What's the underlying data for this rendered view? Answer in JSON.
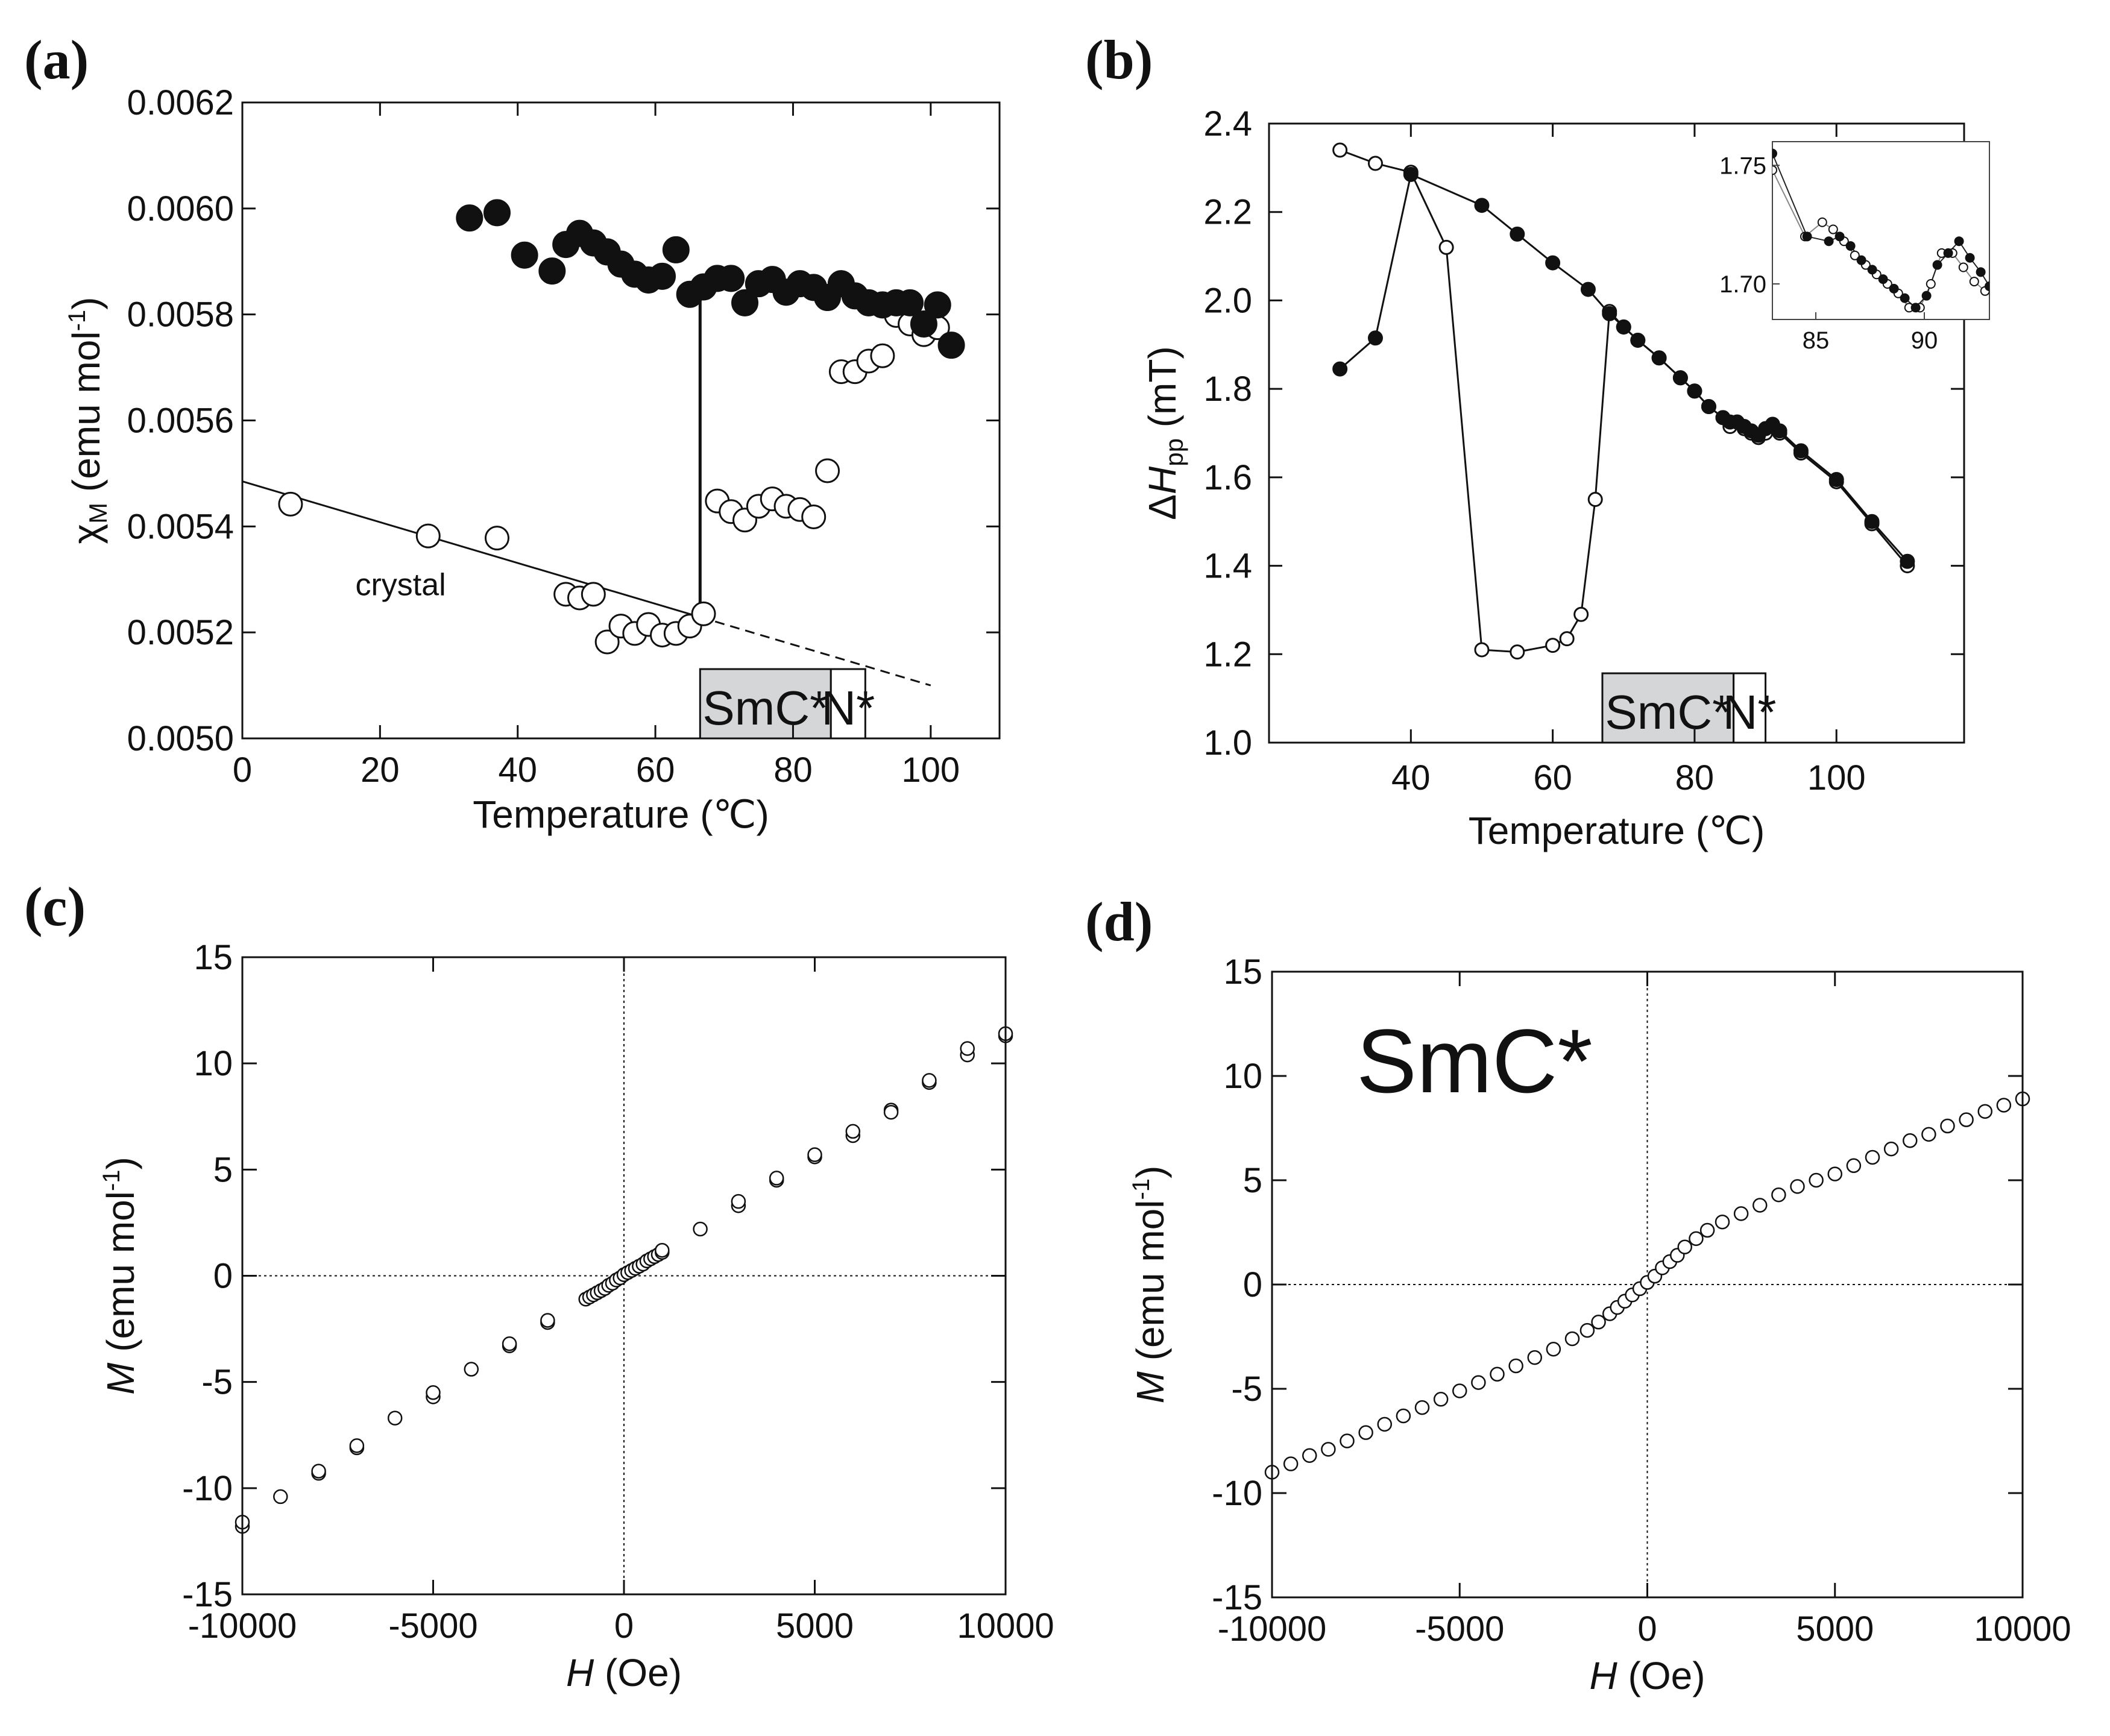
{
  "chart_data": [
    {
      "id": "a",
      "type": "scatter",
      "panel_label": "(a)",
      "xlabel": "Temperature (℃)",
      "ylabel_main": "χ",
      "ylabel_sub": "M",
      "ylabel_rest": " (emu mol",
      "ylabel_sup": "-1",
      "ylabel_close": ")",
      "xlim": [
        0,
        110
      ],
      "ylim": [
        0.005,
        0.0062
      ],
      "xticks": [
        0,
        20,
        40,
        60,
        80,
        100
      ],
      "yticks": [
        0.005,
        0.0052,
        0.0054,
        0.0056,
        0.0058,
        0.006,
        0.0062
      ],
      "ytick_labels": [
        "0.0050",
        "0.0052",
        "0.0054",
        "0.0056",
        "0.0058",
        "0.0060",
        "0.0062"
      ],
      "annotation": "crystal",
      "phase_bar": {
        "labels": [
          "SmC*",
          "N*"
        ],
        "ranges": [
          [
            66.5,
            85.5
          ],
          [
            85.5,
            90.5
          ]
        ],
        "shaded": [
          true,
          false
        ]
      },
      "transition_line": {
        "x": 66.5,
        "y_from": 0.00521,
        "y_to": 0.00583
      },
      "fit_line": {
        "x_from": 0,
        "x_to": 100,
        "y_from": 0.005485,
        "y_to": 0.0051,
        "solid_until_x": 66.5
      },
      "series": [
        {
          "style": "filled",
          "x": [
            33,
            37,
            41,
            45,
            47,
            49,
            51,
            53,
            55,
            57,
            59,
            61,
            63,
            65,
            67,
            69,
            71,
            73,
            75,
            77,
            79,
            81,
            83,
            85,
            87,
            89,
            91,
            93,
            95,
            97,
            99,
            101,
            103
          ],
          "y": [
            0.005982,
            0.005992,
            0.005912,
            0.005882,
            0.005932,
            0.005953,
            0.005935,
            0.005918,
            0.005895,
            0.005876,
            0.005865,
            0.005872,
            0.005922,
            0.005838,
            0.005852,
            0.005868,
            0.005868,
            0.005822,
            0.005858,
            0.005866,
            0.005842,
            0.005858,
            0.005851,
            0.005832,
            0.005858,
            0.005835,
            0.005822,
            0.005818,
            0.005822,
            0.005822,
            0.005782,
            0.005818,
            0.005742
          ]
        },
        {
          "style": "open",
          "x": [
            7,
            27,
            37,
            47,
            49,
            51,
            53,
            55,
            57,
            59,
            61,
            63,
            65,
            67,
            69,
            71,
            73,
            75,
            77,
            79,
            81,
            83,
            85,
            87,
            89,
            91,
            93,
            95,
            97,
            99,
            101
          ],
          "y": [
            0.005442,
            0.005382,
            0.005378,
            0.005272,
            0.005265,
            0.005272,
            0.005182,
            0.005212,
            0.005198,
            0.005215,
            0.005195,
            0.005198,
            0.005212,
            0.005235,
            0.005448,
            0.005428,
            0.005412,
            0.005438,
            0.005452,
            0.005438,
            0.005432,
            0.005418,
            0.005505,
            0.005692,
            0.005692,
            0.005712,
            0.005722,
            0.005798,
            0.005782,
            0.005762,
            0.005775
          ]
        }
      ]
    },
    {
      "id": "b",
      "type": "line",
      "panel_label": "(b)",
      "xlabel": "Temperature (℃)",
      "ylabel_delta": "Δ",
      "ylabel_main": "H",
      "ylabel_sub": "pp",
      "ylabel_rest": " (mT)",
      "xlim": [
        20,
        118
      ],
      "ylim": [
        1.0,
        2.4
      ],
      "xticks": [
        40,
        60,
        80,
        100
      ],
      "yticks": [
        1.0,
        1.2,
        1.4,
        1.6,
        1.8,
        2.0,
        2.2,
        2.4
      ],
      "ytick_labels": [
        "1.0",
        "1.2",
        "1.4",
        "1.6",
        "1.8",
        "2.0",
        "2.2",
        "2.4"
      ],
      "phase_bar": {
        "labels": [
          "SmC*",
          "N*"
        ],
        "ranges": [
          [
            67,
            85.5
          ],
          [
            85.5,
            90
          ]
        ],
        "shaded": [
          true,
          false
        ]
      },
      "series": [
        {
          "style": "open",
          "x": [
            30,
            35,
            40,
            45,
            50,
            55,
            60,
            62,
            64,
            66,
            68,
            70,
            72,
            75,
            78,
            80,
            82,
            84,
            85,
            86,
            87,
            88,
            89,
            90,
            91,
            92,
            95,
            100,
            105,
            110
          ],
          "y": [
            2.34,
            2.31,
            2.29,
            2.12,
            1.21,
            1.205,
            1.22,
            1.235,
            1.29,
            1.55,
            1.975,
            1.94,
            1.91,
            1.87,
            1.825,
            1.795,
            1.76,
            1.735,
            1.715,
            1.725,
            1.71,
            1.7,
            1.69,
            1.7,
            1.715,
            1.7,
            1.655,
            1.59,
            1.495,
            1.4
          ]
        },
        {
          "style": "filled",
          "x": [
            30,
            35,
            40,
            50,
            55,
            60,
            65,
            68,
            70,
            72,
            75,
            78,
            80,
            82,
            84,
            85,
            86,
            87,
            88,
            89,
            90,
            91,
            92,
            95,
            100,
            105,
            110
          ],
          "y": [
            1.845,
            1.915,
            2.285,
            2.215,
            2.15,
            2.085,
            2.025,
            1.97,
            1.94,
            1.91,
            1.87,
            1.825,
            1.795,
            1.76,
            1.735,
            1.725,
            1.725,
            1.715,
            1.705,
            1.695,
            1.71,
            1.72,
            1.705,
            1.66,
            1.595,
            1.5,
            1.41
          ]
        }
      ],
      "inset": {
        "xlim": [
          83,
          93
        ],
        "ylim": [
          1.685,
          1.76
        ],
        "xticks": [
          85,
          90
        ],
        "yticks": [
          1.7,
          1.75
        ],
        "ytick_labels": [
          "1.70",
          "1.75"
        ],
        "series": [
          {
            "style": "open",
            "x": [
              83,
              84.5,
              85.3,
              85.8,
              86.3,
              86.8,
              87.3,
              87.8,
              88.3,
              88.8,
              89.3,
              89.8,
              90.3,
              90.8,
              91.3,
              91.8,
              92.3,
              92.8
            ],
            "y": [
              1.748,
              1.72,
              1.726,
              1.723,
              1.718,
              1.712,
              1.708,
              1.704,
              1.7,
              1.696,
              1.69,
              1.69,
              1.7,
              1.713,
              1.713,
              1.707,
              1.701,
              1.697
            ]
          },
          {
            "style": "filled",
            "x": [
              83,
              84.6,
              85.6,
              86.1,
              86.6,
              87.1,
              87.6,
              88.1,
              88.6,
              89.1,
              89.6,
              90.1,
              90.6,
              91.1,
              91.6,
              92.1,
              92.6,
              93
            ],
            "y": [
              1.755,
              1.72,
              1.718,
              1.72,
              1.716,
              1.71,
              1.706,
              1.702,
              1.698,
              1.694,
              1.69,
              1.695,
              1.708,
              1.713,
              1.718,
              1.711,
              1.705,
              1.699
            ]
          }
        ]
      }
    },
    {
      "id": "c",
      "type": "scatter",
      "panel_label": "(c)",
      "xlabel_italic": "H",
      "xlabel_rest": " (Oe)",
      "ylabel_italic": "M",
      "ylabel_rest": " (emu mol",
      "ylabel_sup": "-1",
      "ylabel_close": ")",
      "xlim": [
        -10000,
        10000
      ],
      "ylim": [
        -15,
        15
      ],
      "xticks": [
        -10000,
        -5000,
        0,
        5000,
        10000
      ],
      "yticks": [
        -15,
        -10,
        -5,
        0,
        5,
        10,
        15
      ],
      "series": [
        {
          "style": "open",
          "x": [
            -10000,
            -10000,
            -9000,
            -8000,
            -8000,
            -7000,
            -7000,
            -6000,
            -5000,
            -5000,
            -4000,
            -3000,
            -3000,
            -2000,
            -2000,
            -1000,
            -900,
            -800,
            -700,
            -600,
            -500,
            -400,
            -300,
            -200,
            -100,
            0,
            100,
            200,
            300,
            400,
            500,
            600,
            700,
            800,
            900,
            1000,
            1000,
            2000,
            3000,
            3000,
            4000,
            4000,
            5000,
            5000,
            6000,
            6000,
            7000,
            7000,
            8000,
            8000,
            9000,
            9000,
            10000,
            10000
          ],
          "y": [
            -11.8,
            -11.6,
            -10.4,
            -9.3,
            -9.2,
            -8.1,
            -8.0,
            -6.7,
            -5.7,
            -5.5,
            -4.4,
            -3.3,
            -3.2,
            -2.2,
            -2.1,
            -1.1,
            -1.0,
            -0.9,
            -0.8,
            -0.7,
            -0.6,
            -0.45,
            -0.35,
            -0.2,
            -0.1,
            0.05,
            0.15,
            0.25,
            0.35,
            0.45,
            0.55,
            0.7,
            0.8,
            0.9,
            1.0,
            1.1,
            1.2,
            2.2,
            3.3,
            3.5,
            4.5,
            4.6,
            5.6,
            5.7,
            6.6,
            6.8,
            7.8,
            7.7,
            9.1,
            9.2,
            10.4,
            10.7,
            11.3,
            11.4
          ]
        }
      ]
    },
    {
      "id": "d",
      "type": "scatter",
      "panel_label": "(d)",
      "annotation": "SmC*",
      "xlabel_italic": "H",
      "xlabel_rest": " (Oe)",
      "ylabel_italic": "M",
      "ylabel_rest": " (emu mol",
      "ylabel_sup": "-1",
      "ylabel_close": ")",
      "xlim": [
        -10000,
        10000
      ],
      "ylim": [
        -15,
        15
      ],
      "xticks": [
        -10000,
        -5000,
        0,
        5000,
        10000
      ],
      "yticks": [
        -15,
        -10,
        -5,
        0,
        5,
        10,
        15
      ],
      "series": [
        {
          "style": "open",
          "x": [
            -10000,
            -9500,
            -9000,
            -8500,
            -8000,
            -7500,
            -7000,
            -6500,
            -6000,
            -5500,
            -5000,
            -4500,
            -4000,
            -3500,
            -3000,
            -2500,
            -2000,
            -1600,
            -1300,
            -1000,
            -800,
            -600,
            -400,
            -200,
            0,
            200,
            400,
            600,
            800,
            1000,
            1300,
            1600,
            2000,
            2500,
            3000,
            3500,
            4000,
            4500,
            5000,
            5500,
            6000,
            6500,
            7000,
            7500,
            8000,
            8500,
            9000,
            9500,
            10000
          ],
          "y": [
            -9.0,
            -8.6,
            -8.2,
            -7.9,
            -7.5,
            -7.1,
            -6.7,
            -6.3,
            -5.9,
            -5.5,
            -5.1,
            -4.7,
            -4.3,
            -3.9,
            -3.5,
            -3.1,
            -2.6,
            -2.2,
            -1.8,
            -1.4,
            -1.1,
            -0.8,
            -0.5,
            -0.2,
            0.1,
            0.4,
            0.8,
            1.1,
            1.4,
            1.8,
            2.2,
            2.6,
            3.0,
            3.4,
            3.8,
            4.3,
            4.7,
            5.0,
            5.3,
            5.7,
            6.1,
            6.5,
            6.9,
            7.2,
            7.6,
            7.9,
            8.3,
            8.6,
            8.9
          ]
        }
      ]
    }
  ]
}
